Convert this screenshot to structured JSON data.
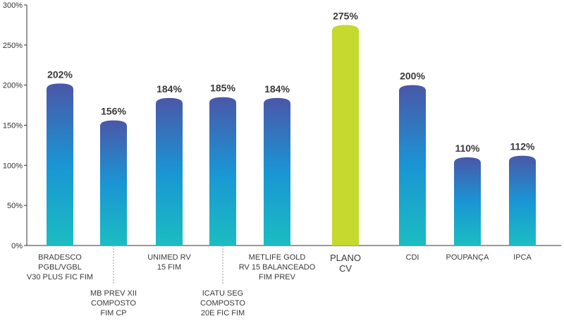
{
  "chart_data": {
    "type": "bar",
    "title": "",
    "xlabel": "",
    "ylabel": "",
    "ylim": [
      0,
      300
    ],
    "yticks": [
      "0%",
      "50%",
      "100%",
      "150%",
      "200%",
      "250%",
      "300%"
    ],
    "grid": false,
    "categories": [
      {
        "lines": [
          "BRADESCO",
          "PGBL/VGBL",
          "V30 PLUS FIC FIM"
        ],
        "label_position": "top",
        "value": 202,
        "value_label": "202%",
        "style": "gradient"
      },
      {
        "lines": [
          "MB PREV XII",
          "COMPOSTO",
          "FIM CP"
        ],
        "label_position": "bottom",
        "value": 156,
        "value_label": "156%",
        "style": "gradient"
      },
      {
        "lines": [
          "UNIMED RV",
          "15 FIM"
        ],
        "label_position": "top",
        "value": 184,
        "value_label": "184%",
        "style": "gradient"
      },
      {
        "lines": [
          "ICATU SEG",
          "COMPOSTO",
          "20E FIC FIM"
        ],
        "label_position": "bottom",
        "value": 185,
        "value_label": "185%",
        "style": "gradient"
      },
      {
        "lines": [
          "METLIFE GOLD",
          "RV 15 BALANCEADO",
          "FIM PREV"
        ],
        "label_position": "top",
        "value": 184,
        "value_label": "184%",
        "style": "gradient"
      },
      {
        "lines": [
          "PLANO",
          "CV"
        ],
        "label_position": "top",
        "value": 275,
        "value_label": "275%",
        "style": "highlight"
      },
      {
        "lines": [
          "CDI"
        ],
        "label_position": "top",
        "value": 200,
        "value_label": "200%",
        "style": "gradient"
      },
      {
        "lines": [
          "POUPANÇA"
        ],
        "label_position": "top",
        "value": 110,
        "value_label": "110%",
        "style": "gradient"
      },
      {
        "lines": [
          "IPCA"
        ],
        "label_position": "top",
        "value": 112,
        "value_label": "112%",
        "style": "gradient"
      }
    ],
    "colors": {
      "gradient_top": "#4a57a8",
      "gradient_mid": "#1a95d4",
      "gradient_bottom": "#1bbdc2",
      "highlight": "#c5d92e",
      "axis": "#333333",
      "leader": "#999999"
    }
  }
}
